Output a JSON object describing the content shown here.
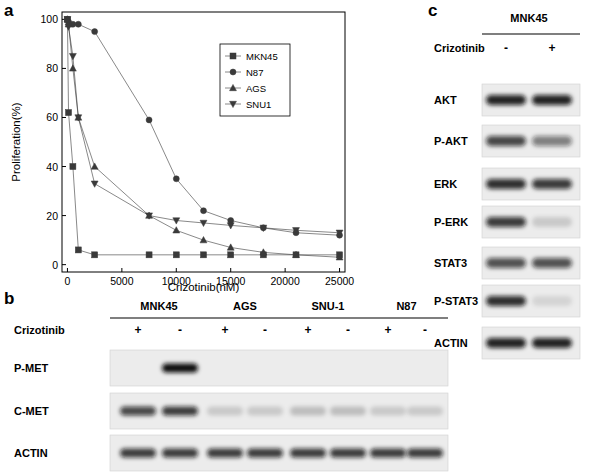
{
  "chart_data": {
    "type": "line",
    "title": "a",
    "x_label": "Crizotinib(nM)",
    "y_label": "Proliferation(%)",
    "x": [
      0,
      100,
      500,
      1000,
      2500,
      7500,
      10000,
      12500,
      15000,
      18000,
      21000,
      25000
    ],
    "series": [
      {
        "name": "MKN45",
        "color": "#3a3a3a",
        "marker": "square",
        "values": [
          100,
          62,
          40,
          6,
          4,
          4,
          4,
          4,
          4,
          4,
          4,
          4
        ]
      },
      {
        "name": "N87",
        "color": "#3a3a3a",
        "marker": "circle",
        "values": [
          100,
          99,
          98,
          98,
          95,
          59,
          35,
          22,
          18,
          15,
          13,
          12
        ]
      },
      {
        "name": "AGS",
        "color": "#3a3a3a",
        "marker": "triangle",
        "values": [
          100,
          98,
          80,
          60,
          40,
          20,
          14,
          10,
          7,
          5,
          4,
          3
        ]
      },
      {
        "name": "SNU1",
        "color": "#3a3a3a",
        "marker": "triangle-down",
        "values": [
          100,
          97,
          85,
          60,
          33,
          20,
          18,
          17,
          16,
          15,
          14,
          13
        ]
      }
    ],
    "xlim": [
      -500,
      25500
    ],
    "xticks": [
      0,
      5000,
      10000,
      15000,
      20000,
      25000
    ],
    "ylim": [
      -3,
      103
    ],
    "yticks": [
      0,
      20,
      40,
      60,
      80,
      100
    ],
    "grid": false,
    "legend": "upper-right"
  },
  "blot_b": {
    "label": "b",
    "groups": [
      "MNK45",
      "AGS",
      "SNU-1",
      "N87"
    ],
    "treatment_label": "Crizotinib",
    "treatments": [
      "+",
      "-",
      "+",
      "-",
      "+",
      "-",
      "+",
      "-"
    ],
    "rows": [
      {
        "name": "P-MET",
        "bands": [
          0,
          1,
          0,
          0,
          0,
          0,
          0,
          0
        ]
      },
      {
        "name": "C-MET",
        "bands": [
          0.75,
          0.8,
          0.15,
          0.15,
          0.2,
          0.2,
          0.15,
          0.15
        ]
      },
      {
        "name": "ACTIN",
        "bands": [
          0.8,
          0.8,
          0.8,
          0.8,
          0.8,
          0.8,
          0.8,
          0.8
        ]
      }
    ]
  },
  "blot_c": {
    "label": "c",
    "groups": [
      "MNK45"
    ],
    "treatment_label": "Crizotinib",
    "treatments": [
      "-",
      "+"
    ],
    "rows": [
      {
        "name": "AKT",
        "bands": [
          0.9,
          0.9
        ]
      },
      {
        "name": "P-AKT",
        "bands": [
          0.75,
          0.5
        ]
      },
      {
        "name": "ERK",
        "bands": [
          0.85,
          0.8
        ]
      },
      {
        "name": "P-ERK",
        "bands": [
          0.8,
          0.15
        ]
      },
      {
        "name": "STAT3",
        "bands": [
          0.7,
          0.7
        ]
      },
      {
        "name": "P-STAT3",
        "bands": [
          0.85,
          0.1
        ]
      },
      {
        "name": "ACTIN",
        "bands": [
          0.9,
          0.9
        ]
      }
    ]
  }
}
